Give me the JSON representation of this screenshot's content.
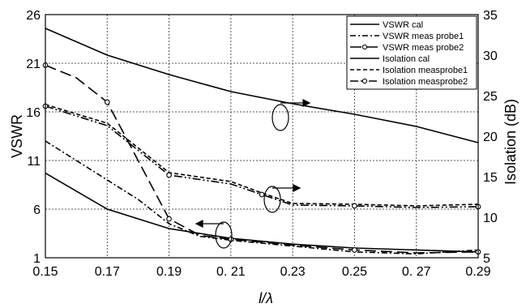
{
  "chart_data": {
    "type": "line",
    "title": "",
    "xlabel": "l/λ",
    "ylabel": "VSWR",
    "y2label": "Isolation (dB)",
    "xlim": [
      0.15,
      0.29
    ],
    "ylim": [
      1,
      26
    ],
    "y2lim": [
      5,
      35
    ],
    "x_ticks": [
      "0.15",
      "0.17",
      "0.19",
      "0. 21",
      "0.23",
      "0.25",
      "0. 27",
      "0.29"
    ],
    "y_ticks": [
      "1",
      "6",
      "11",
      "16",
      "21",
      "26"
    ],
    "y2_ticks": [
      "5",
      "10",
      "15",
      "20",
      "25",
      "30",
      "35"
    ],
    "grid": true,
    "legend_position": "top-right",
    "series": [
      {
        "name": "VSWR cal",
        "axis": "left",
        "style": "solid",
        "marker": "none",
        "x": [
          0.15,
          0.17,
          0.19,
          0.21,
          0.23,
          0.25,
          0.27,
          0.29
        ],
        "y": [
          9.7,
          6.0,
          4.0,
          3.0,
          2.4,
          2.0,
          1.8,
          1.6
        ]
      },
      {
        "name": "VSWR meas probe1",
        "axis": "left",
        "style": "dash-dot",
        "marker": "none",
        "x": [
          0.15,
          0.16,
          0.17,
          0.18,
          0.19,
          0.2,
          0.21,
          0.23,
          0.25,
          0.27,
          0.29
        ],
        "y": [
          13.0,
          11.0,
          9.0,
          7.0,
          4.5,
          3.2,
          2.8,
          2.2,
          1.6,
          1.4,
          1.8
        ]
      },
      {
        "name": "VSWR meas probe2",
        "axis": "left",
        "style": "long-dash",
        "marker": "circle",
        "x": [
          0.15,
          0.16,
          0.17,
          0.18,
          0.19,
          0.2,
          0.21,
          0.23,
          0.25,
          0.27,
          0.29
        ],
        "y": [
          20.8,
          19.5,
          17.0,
          11.0,
          5.0,
          3.3,
          2.9,
          2.3,
          1.8,
          1.5,
          1.6
        ]
      },
      {
        "name": "Isolation cal",
        "axis": "right",
        "style": "solid",
        "marker": "none",
        "x": [
          0.15,
          0.17,
          0.19,
          0.21,
          0.23,
          0.25,
          0.27,
          0.29
        ],
        "y": [
          33.3,
          30.0,
          27.6,
          25.5,
          24.0,
          22.7,
          21.2,
          19.2
        ]
      },
      {
        "name": "Isolation measprobe1",
        "axis": "right",
        "style": "dashed",
        "marker": "none",
        "x": [
          0.15,
          0.17,
          0.19,
          0.21,
          0.22,
          0.23,
          0.25,
          0.27,
          0.29
        ],
        "y": [
          23.9,
          21.6,
          15.5,
          14.4,
          13.0,
          11.7,
          11.6,
          11.4,
          11.6
        ]
      },
      {
        "name": "Isolation measprobe2",
        "axis": "right",
        "style": "dash-dot-dot",
        "marker": "circle",
        "x": [
          0.15,
          0.17,
          0.19,
          0.21,
          0.22,
          0.23,
          0.25,
          0.27,
          0.29
        ],
        "y": [
          23.7,
          21.3,
          15.2,
          14.1,
          12.8,
          11.5,
          11.4,
          11.2,
          11.3
        ]
      }
    ]
  }
}
